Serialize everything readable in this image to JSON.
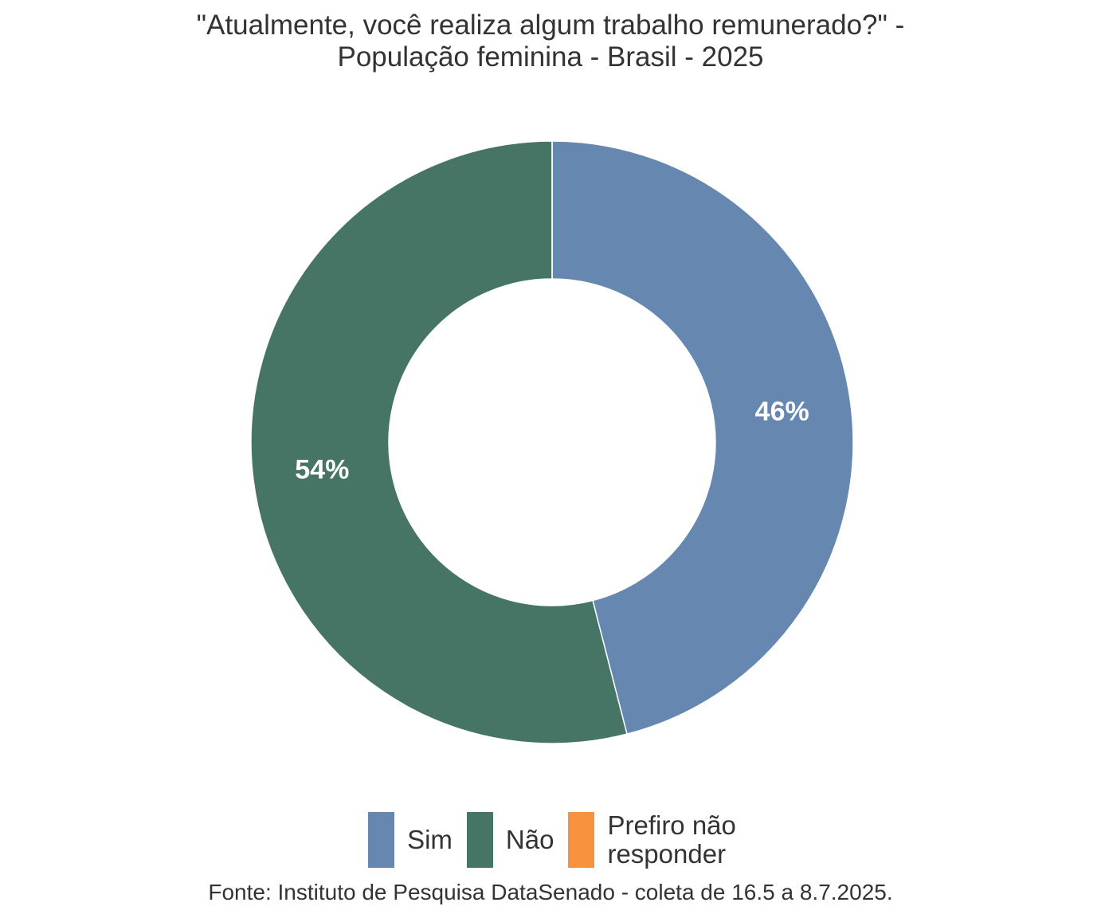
{
  "chart_data": {
    "type": "donut",
    "title": "\"Atualmente, você realiza algum trabalho remunerado?\" -\nPopulação feminina - Brasil - 2025",
    "categories": [
      "Sim",
      "Não",
      "Prefiro não\nresponder"
    ],
    "values": [
      46,
      54,
      0
    ],
    "value_labels": [
      "46%",
      "54%",
      null
    ],
    "colors": [
      "#6587b0",
      "#467565",
      "#f9923f"
    ],
    "legend": "bottom",
    "source": "Fonte: Instituto de Pesquisa DataSenado - coleta de 16.5 a 8.7.2025."
  }
}
